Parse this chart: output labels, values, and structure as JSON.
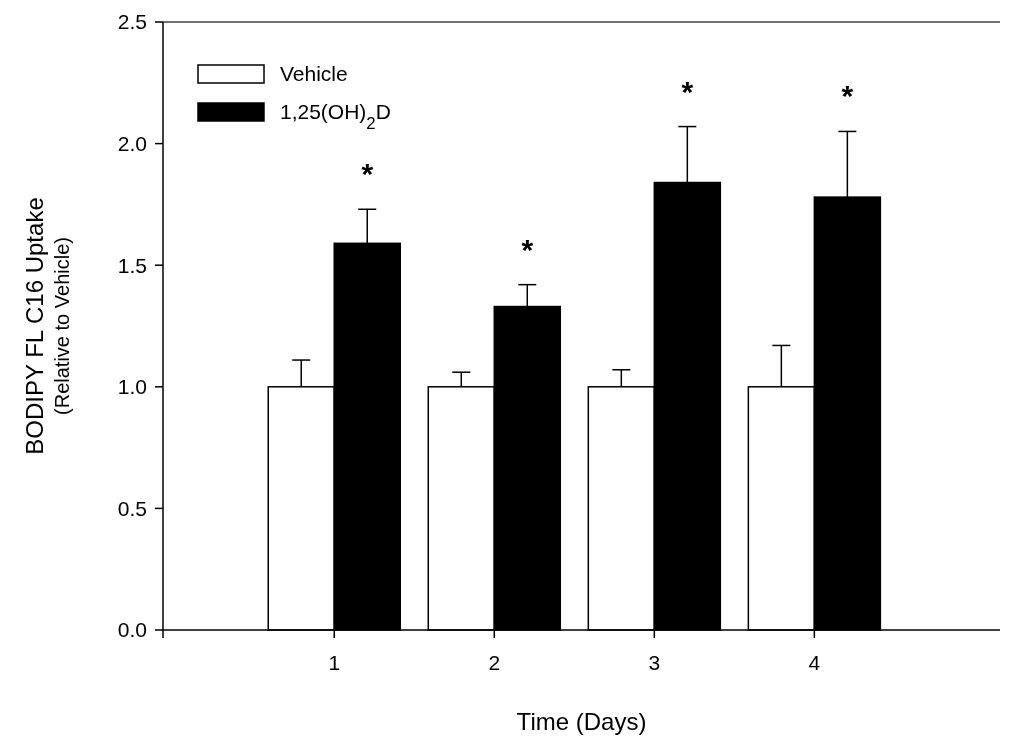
{
  "chart_data": {
    "type": "bar",
    "xlabel": "Time (Days)",
    "ylabel": "BODIPY FL C16 Uptake\n(Relative to Vehicle)",
    "categories": [
      "1",
      "2",
      "3",
      "4"
    ],
    "series": [
      {
        "name": "Vehicle",
        "color": "#ffffff",
        "values": [
          1.0,
          1.0,
          1.0,
          1.0
        ],
        "errors": [
          0.11,
          0.06,
          0.07,
          0.17
        ]
      },
      {
        "name": "1,25(OH)$_{2}$D",
        "color": "#000000",
        "values": [
          1.59,
          1.33,
          1.84,
          1.78
        ],
        "errors": [
          0.14,
          0.09,
          0.23,
          0.27
        ]
      }
    ],
    "ylim": [
      0,
      2.5
    ],
    "yticks": [
      {
        "value": 0,
        "label": "0.0"
      },
      {
        "value": 0.5,
        "label": "0.5"
      },
      {
        "value": 1,
        "label": "1.0"
      },
      {
        "value": 1.5,
        "label": "1.5"
      },
      {
        "value": 2,
        "label": "2.0"
      },
      {
        "value": 2.5,
        "label": "2.5"
      }
    ],
    "grid": false,
    "legend": "top left",
    "annotations": [
      "*",
      "*",
      "*",
      "*"
    ]
  }
}
